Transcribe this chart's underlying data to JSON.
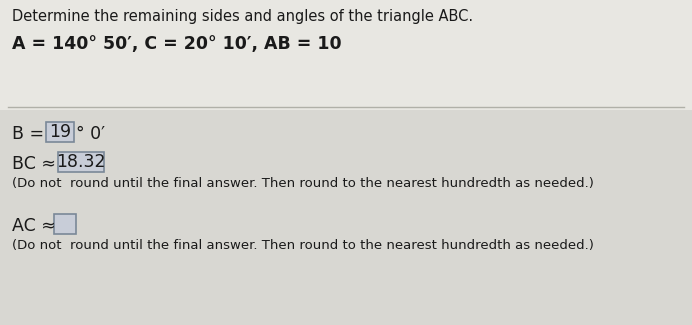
{
  "title": "Determine the remaining sides and angles of the triangle ABC.",
  "given_line": "A = 140° 50′, C = 20° 10′, AB = 10",
  "b_label": "B = ",
  "b_box_value": "19",
  "bc_label": "BC ≈ ",
  "bc_box_value": "18.32",
  "bc_note": "(Do not  round until the final answer. Then round to the nearest hundredth as needed.)",
  "ac_label": "AC ≈",
  "ac_note": "(Do not  round until the final answer. Then round to the nearest hundredth as needed.)",
  "background_color": "#dcdbd6",
  "upper_bg": "#e8e7e2",
  "lower_bg": "#d8d7d2",
  "text_color": "#1a1a1a",
  "box_color": "#c8cdd8",
  "box_border": "#7a8898",
  "line_color": "#b0b0a8",
  "title_fontsize": 10.5,
  "given_fontsize": 12.5,
  "body_fontsize": 12.5,
  "note_fontsize": 9.5
}
